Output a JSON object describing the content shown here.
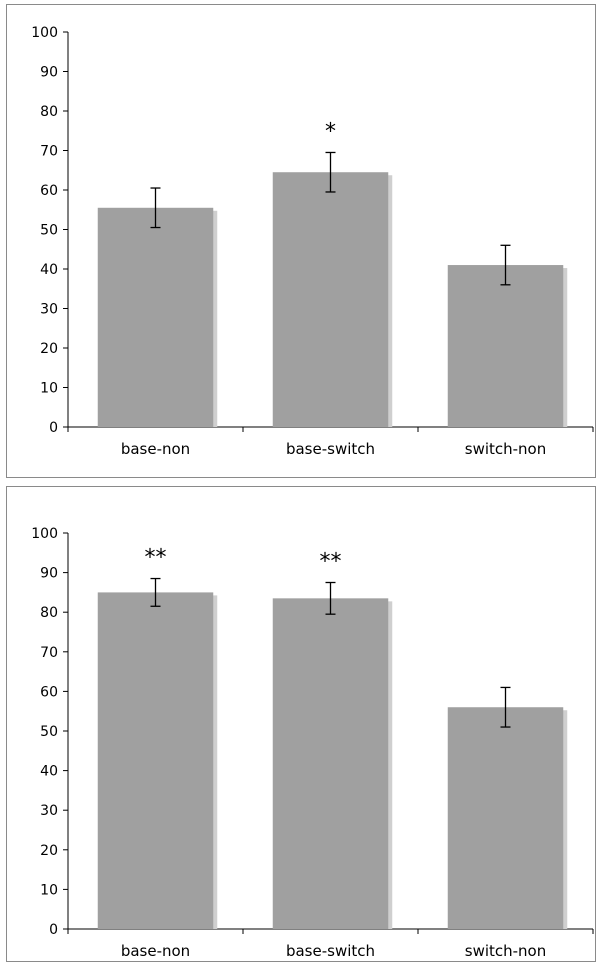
{
  "chart_data": [
    {
      "type": "bar",
      "categories": [
        "base-non",
        "base-switch",
        "switch-non"
      ],
      "values": [
        55.5,
        64.5,
        41
      ],
      "errors": [
        5,
        5,
        5
      ],
      "annotations": [
        "",
        "*",
        ""
      ],
      "yticks": [
        "0",
        "10",
        "20",
        "30",
        "40",
        "50",
        "60",
        "70",
        "80",
        "90",
        "100"
      ],
      "ylim": [
        0,
        100
      ],
      "title": "",
      "xlabel": "",
      "ylabel": "",
      "bar_color": "#a0a0a0",
      "shadow_color": "#cfcfcf",
      "grid": false
    },
    {
      "type": "bar",
      "categories": [
        "base-non",
        "base-switch",
        "switch-non"
      ],
      "values": [
        85,
        83.5,
        56
      ],
      "errors": [
        3.5,
        4,
        5
      ],
      "annotations": [
        "**",
        "**",
        ""
      ],
      "yticks": [
        "0",
        "10",
        "20",
        "30",
        "40",
        "50",
        "60",
        "70",
        "80",
        "90",
        "100"
      ],
      "ylim": [
        0,
        100
      ],
      "title": "",
      "xlabel": "",
      "ylabel": "",
      "bar_color": "#a0a0a0",
      "shadow_color": "#cfcfcf",
      "grid": false
    }
  ]
}
